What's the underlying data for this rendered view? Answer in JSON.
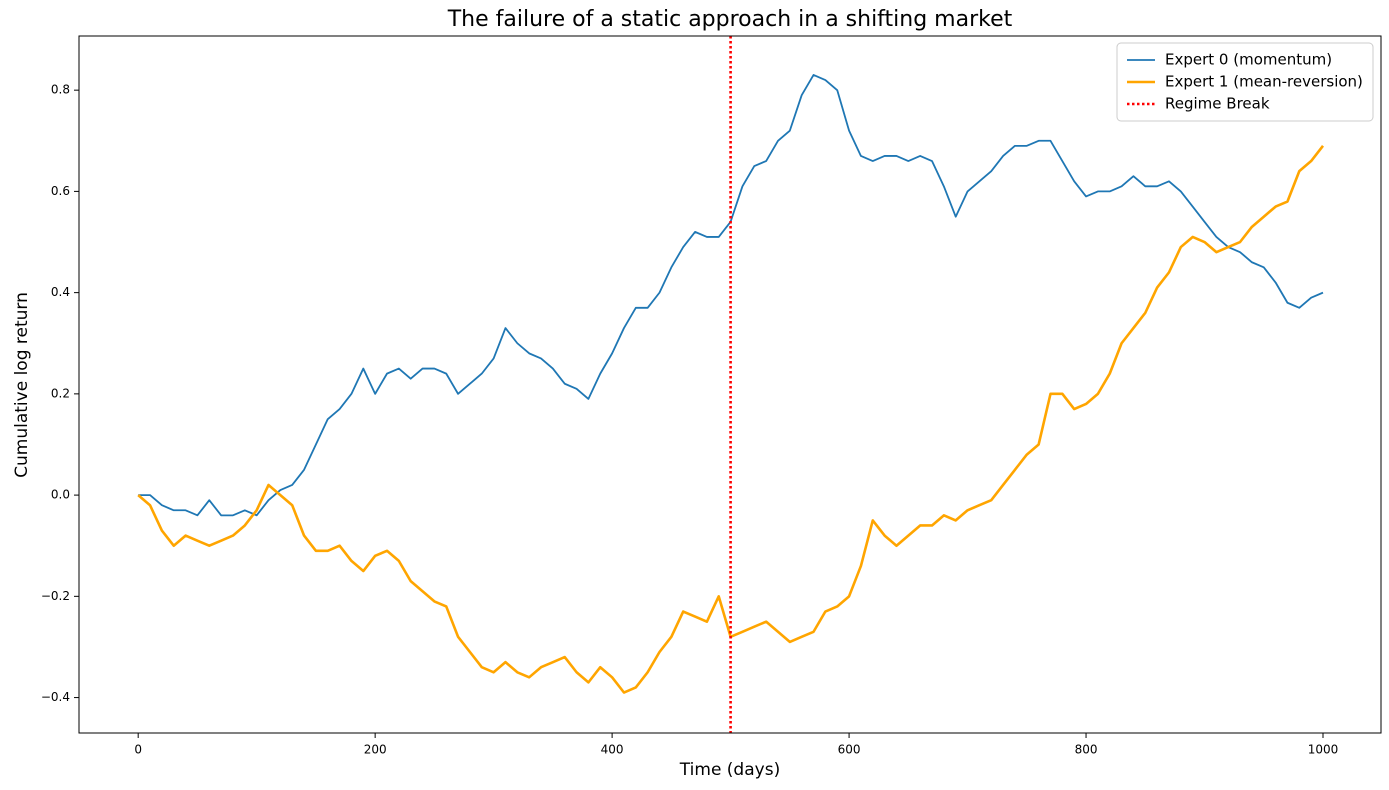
{
  "chart_data": {
    "type": "line",
    "title": "The failure of a static approach in a shifting market",
    "xlabel": "Time (days)",
    "ylabel": "Cumulative log return",
    "x": [
      0,
      10,
      20,
      30,
      40,
      50,
      60,
      70,
      80,
      90,
      100,
      110,
      120,
      130,
      140,
      150,
      160,
      170,
      180,
      190,
      200,
      210,
      220,
      230,
      240,
      250,
      260,
      270,
      280,
      290,
      300,
      310,
      320,
      330,
      340,
      350,
      360,
      370,
      380,
      390,
      400,
      410,
      420,
      430,
      440,
      450,
      460,
      470,
      480,
      490,
      500,
      510,
      520,
      530,
      540,
      550,
      560,
      570,
      580,
      590,
      600,
      610,
      620,
      630,
      640,
      650,
      660,
      670,
      680,
      690,
      700,
      710,
      720,
      730,
      740,
      750,
      760,
      770,
      780,
      790,
      800,
      810,
      820,
      830,
      840,
      850,
      860,
      870,
      880,
      890,
      900,
      910,
      920,
      930,
      940,
      950,
      960,
      970,
      980,
      990,
      1000
    ],
    "series": [
      {
        "name": "Expert 0 (momentum)",
        "color": "#1f77b4",
        "width": 1.8,
        "values": [
          0,
          0.0,
          -0.02,
          -0.03,
          -0.03,
          -0.04,
          -0.01,
          -0.04,
          -0.04,
          -0.03,
          -0.04,
          -0.01,
          0.01,
          0.02,
          0.05,
          0.1,
          0.15,
          0.17,
          0.2,
          0.25,
          0.2,
          0.24,
          0.25,
          0.23,
          0.25,
          0.25,
          0.24,
          0.2,
          0.22,
          0.24,
          0.27,
          0.33,
          0.3,
          0.28,
          0.27,
          0.25,
          0.22,
          0.21,
          0.19,
          0.24,
          0.28,
          0.33,
          0.37,
          0.37,
          0.4,
          0.45,
          0.49,
          0.52,
          0.51,
          0.51,
          0.54,
          0.61,
          0.65,
          0.66,
          0.7,
          0.72,
          0.79,
          0.83,
          0.82,
          0.8,
          0.72,
          0.67,
          0.66,
          0.67,
          0.67,
          0.66,
          0.67,
          0.66,
          0.61,
          0.55,
          0.6,
          0.62,
          0.64,
          0.67,
          0.69,
          0.69,
          0.7,
          0.7,
          0.66,
          0.62,
          0.59,
          0.6,
          0.6,
          0.61,
          0.63,
          0.61,
          0.61,
          0.62,
          0.6,
          0.57,
          0.54,
          0.51,
          0.49,
          0.48,
          0.46,
          0.45,
          0.42,
          0.38,
          0.37,
          0.39,
          0.4
        ]
      },
      {
        "name": "Expert 1 (mean-reversion)",
        "color": "#ffa500",
        "width": 2.6,
        "values": [
          0,
          -0.02,
          -0.07,
          -0.1,
          -0.08,
          -0.09,
          -0.1,
          -0.09,
          -0.08,
          -0.06,
          -0.03,
          0.02,
          0.0,
          -0.02,
          -0.08,
          -0.11,
          -0.11,
          -0.1,
          -0.13,
          -0.15,
          -0.12,
          -0.11,
          -0.13,
          -0.17,
          -0.19,
          -0.21,
          -0.22,
          -0.28,
          -0.31,
          -0.34,
          -0.35,
          -0.33,
          -0.35,
          -0.36,
          -0.34,
          -0.33,
          -0.32,
          -0.35,
          -0.37,
          -0.34,
          -0.36,
          -0.39,
          -0.38,
          -0.35,
          -0.31,
          -0.28,
          -0.23,
          -0.24,
          -0.25,
          -0.2,
          -0.28,
          -0.27,
          -0.26,
          -0.25,
          -0.27,
          -0.29,
          -0.28,
          -0.27,
          -0.23,
          -0.22,
          -0.2,
          -0.14,
          -0.05,
          -0.08,
          -0.1,
          -0.08,
          -0.06,
          -0.06,
          -0.04,
          -0.05,
          -0.03,
          -0.02,
          -0.01,
          0.02,
          0.05,
          0.08,
          0.1,
          0.2,
          0.2,
          0.17,
          0.18,
          0.2,
          0.24,
          0.3,
          0.33,
          0.36,
          0.41,
          0.44,
          0.49,
          0.51,
          0.5,
          0.48,
          0.49,
          0.5,
          0.53,
          0.55,
          0.57,
          0.58,
          0.64,
          0.66,
          0.69
        ]
      }
    ],
    "vline": {
      "name": "Regime Break",
      "x": 500,
      "color": "#ff0000"
    },
    "xlim": [
      -49.95,
      1048.95
    ],
    "xticks": [
      0,
      200,
      400,
      600,
      800,
      1000
    ],
    "ylim": [
      -0.47,
      0.907
    ],
    "yticks": [
      {
        "value": -0.4,
        "label": "−0.4"
      },
      {
        "value": -0.2,
        "label": "−0.2"
      },
      {
        "value": 0,
        "label": "0.0"
      },
      0.2,
      0.4,
      0.6,
      0.8
    ],
    "legend": "upper right"
  }
}
